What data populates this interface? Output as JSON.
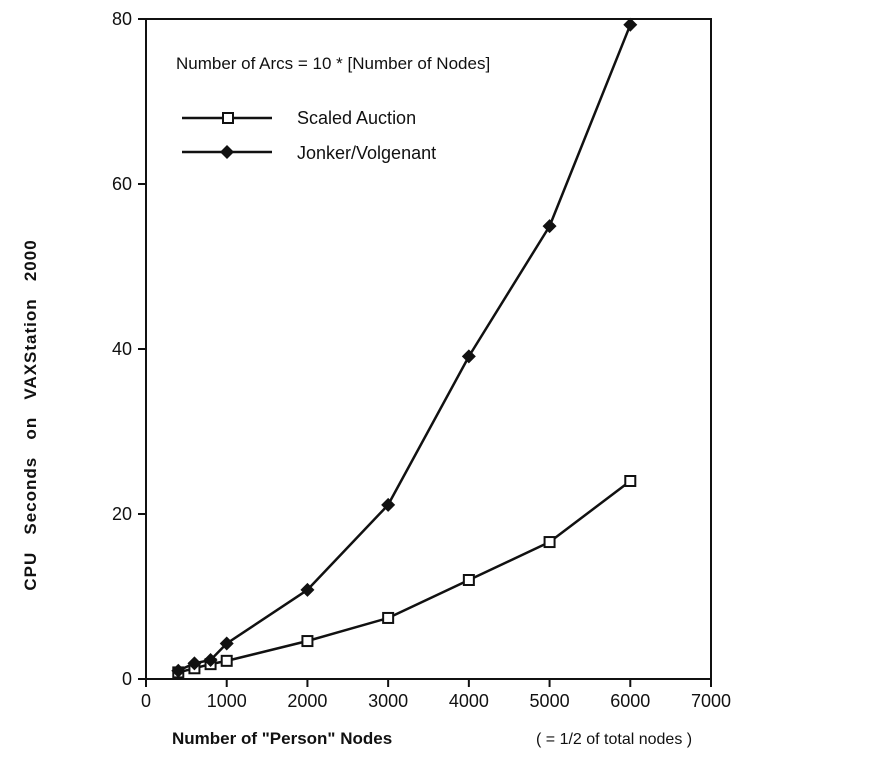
{
  "chart_data": {
    "type": "line",
    "annotation": "Number of Arcs = 10 * [Number of Nodes]",
    "xlabel": "Number of \"Person\" Nodes",
    "xlabel_note": "( = 1/2 of total nodes )",
    "ylabel": "CPU   Seconds   on   VAXStation   2000",
    "xlim": [
      0,
      7000
    ],
    "ylim": [
      0,
      80
    ],
    "x_ticks": [
      "0",
      "1000",
      "2000",
      "3000",
      "4000",
      "5000",
      "6000",
      "7000"
    ],
    "y_ticks": [
      "0",
      "20",
      "40",
      "60",
      "80"
    ],
    "grid": false,
    "legend_position": "top-left",
    "series": [
      {
        "name": "Scaled Auction",
        "marker": "open-square",
        "x": [
          400,
          600,
          800,
          1000,
          2000,
          3000,
          4000,
          5000,
          6000
        ],
        "y": [
          0.8,
          1.3,
          1.8,
          2.2,
          4.6,
          7.4,
          12.0,
          16.6,
          24.0
        ]
      },
      {
        "name": "Jonker/Volgenant",
        "marker": "filled-diamond",
        "x": [
          400,
          600,
          800,
          1000,
          2000,
          3000,
          4000,
          5000,
          6000
        ],
        "y": [
          1.0,
          1.9,
          2.3,
          4.3,
          10.8,
          21.1,
          39.1,
          54.9,
          79.3
        ]
      }
    ]
  }
}
